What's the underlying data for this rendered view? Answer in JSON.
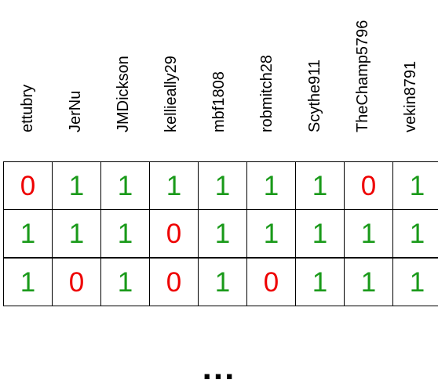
{
  "columns": [
    "ettubry",
    "JerNu",
    "JMDickson",
    "kellieally29",
    "mbf1808",
    "robmitch28",
    "Scythe911",
    "TheChamp5796",
    "vekin8791"
  ],
  "rows": [
    [
      "0",
      "1",
      "1",
      "1",
      "1",
      "1",
      "1",
      "0",
      "1"
    ],
    [
      "1",
      "1",
      "1",
      "0",
      "1",
      "1",
      "1",
      "1",
      "1"
    ],
    [
      "1",
      "0",
      "1",
      "0",
      "1",
      "0",
      "1",
      "1",
      "1"
    ]
  ],
  "ellipsis": "...",
  "colors": {
    "one": "#1a9a1a",
    "zero": "#ee0000"
  }
}
